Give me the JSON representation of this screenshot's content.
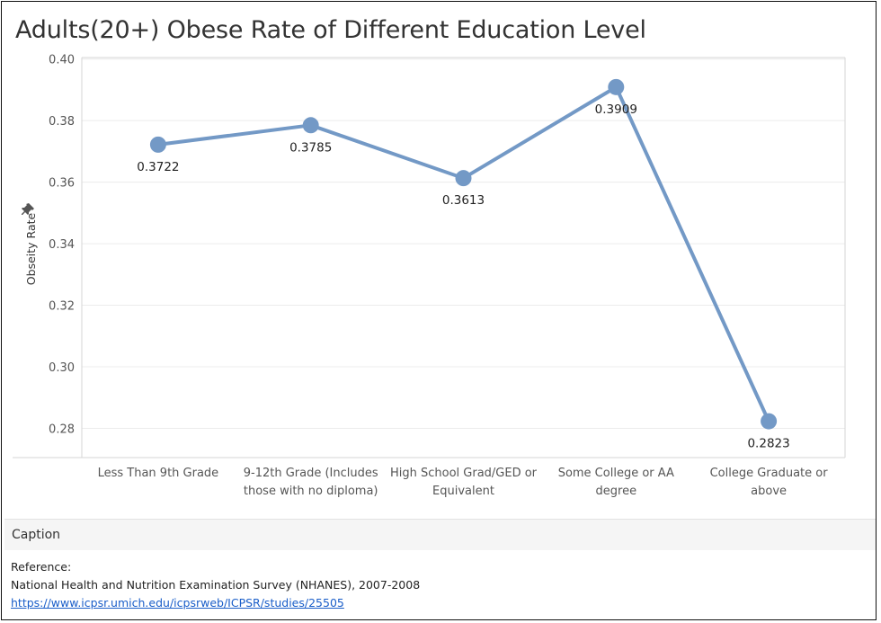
{
  "title": "Adults(20+) Obese Rate of  Different Education Level",
  "caption": {
    "heading": "Caption",
    "reference_label": "Reference:",
    "source": "National Health and Nutrition Examination Survey (NHANES), 2007-2008",
    "link": "https://www.icpsr.umich.edu/icpsrweb/ICPSR/studies/25505"
  },
  "chart_data": {
    "type": "line",
    "title": "Adults(20+) Obese Rate of  Different Education Level",
    "xlabel": "",
    "ylabel": "Obseity Rate",
    "categories": [
      [
        "Less Than 9th Grade"
      ],
      [
        "9-12th Grade (Includes",
        "those with no diploma)"
      ],
      [
        "High School Grad/GED or",
        "Equivalent"
      ],
      [
        "Some College or AA",
        "degree"
      ],
      [
        "College Graduate or",
        "above"
      ]
    ],
    "values": [
      0.3722,
      0.3785,
      0.3613,
      0.3909,
      0.2823
    ],
    "value_labels": [
      "0.3722",
      "0.3785",
      "0.3613",
      "0.3909",
      "0.2823"
    ],
    "yticks": [
      "0.28",
      "0.30",
      "0.32",
      "0.34",
      "0.36",
      "0.38",
      "0.40"
    ],
    "ylim": [
      0.2705,
      0.4005
    ],
    "grid": true,
    "colors": {
      "line": "#7399c6",
      "grid": "#ececec",
      "axis": "#d6d6d6"
    }
  }
}
